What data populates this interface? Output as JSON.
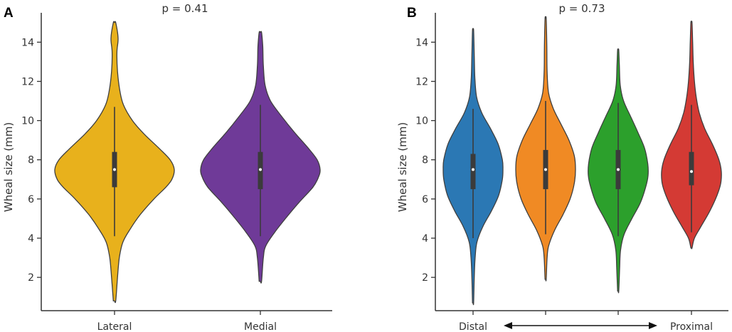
{
  "chart_data": [
    {
      "type": "violin",
      "panel": "A",
      "title": "p = 0.41",
      "xlabel": "",
      "ylabel": "Wheal size (mm)",
      "ylim": [
        0.3,
        15.5
      ],
      "yticks": [
        2,
        4,
        6,
        8,
        10,
        12,
        14
      ],
      "categories": [
        "Lateral",
        "Medial"
      ],
      "series": [
        {
          "name": "Lateral",
          "color": "#e8b11c",
          "min": 0.8,
          "max": 15.0,
          "q1": 6.6,
          "median": 7.5,
          "q3": 8.4,
          "whisker_low": 4.1,
          "whisker_high": 10.7,
          "density": [
            [
              0.8,
              0.02
            ],
            [
              2,
              0.05
            ],
            [
              3,
              0.08
            ],
            [
              3.8,
              0.14
            ],
            [
              4.5,
              0.27
            ],
            [
              5.2,
              0.43
            ],
            [
              6,
              0.66
            ],
            [
              6.6,
              0.86
            ],
            [
              7,
              0.96
            ],
            [
              7.5,
              1.0
            ],
            [
              8,
              0.93
            ],
            [
              8.6,
              0.74
            ],
            [
              9.3,
              0.5
            ],
            [
              10,
              0.3
            ],
            [
              10.8,
              0.15
            ],
            [
              11.5,
              0.09
            ],
            [
              12.5,
              0.05
            ],
            [
              13.5,
              0.04
            ],
            [
              14.2,
              0.06
            ],
            [
              15.0,
              0.02
            ]
          ]
        },
        {
          "name": "Medial",
          "color": "#6f3a98",
          "min": 1.8,
          "max": 14.5,
          "q1": 6.5,
          "median": 7.5,
          "q3": 8.4,
          "whisker_low": 4.1,
          "whisker_high": 10.8,
          "density": [
            [
              1.8,
              0.02
            ],
            [
              3,
              0.05
            ],
            [
              3.6,
              0.09
            ],
            [
              4.3,
              0.24
            ],
            [
              5,
              0.42
            ],
            [
              5.8,
              0.64
            ],
            [
              6.6,
              0.88
            ],
            [
              7.1,
              0.97
            ],
            [
              7.5,
              1.0
            ],
            [
              8,
              0.95
            ],
            [
              8.6,
              0.8
            ],
            [
              9.4,
              0.57
            ],
            [
              10.2,
              0.36
            ],
            [
              11,
              0.17
            ],
            [
              11.8,
              0.08
            ],
            [
              12.8,
              0.05
            ],
            [
              13.8,
              0.04
            ],
            [
              14.5,
              0.02
            ]
          ]
        }
      ]
    },
    {
      "type": "violin",
      "panel": "B",
      "title": "p = 0.73",
      "xlabel": "",
      "ylabel": "Wheal size (mm)",
      "ylim": [
        0.3,
        15.5
      ],
      "yticks": [
        2,
        4,
        6,
        8,
        10,
        12,
        14
      ],
      "categories": [
        "Distal",
        "",
        "",
        "Proximal"
      ],
      "arrow": "bidirectional",
      "series": [
        {
          "name": "Distal",
          "color": "#2b78b4",
          "min": 0.7,
          "max": 14.6,
          "q1": 6.5,
          "median": 7.5,
          "q3": 8.3,
          "whisker_low": 4.0,
          "whisker_high": 10.6,
          "density": [
            [
              0.7,
              0.02
            ],
            [
              2,
              0.04
            ],
            [
              3,
              0.07
            ],
            [
              3.8,
              0.13
            ],
            [
              4.6,
              0.33
            ],
            [
              5.4,
              0.62
            ],
            [
              6.2,
              0.86
            ],
            [
              7,
              0.98
            ],
            [
              7.5,
              1.0
            ],
            [
              8,
              0.98
            ],
            [
              8.8,
              0.84
            ],
            [
              9.6,
              0.58
            ],
            [
              10.4,
              0.29
            ],
            [
              11.2,
              0.12
            ],
            [
              12.2,
              0.06
            ],
            [
              13.3,
              0.04
            ],
            [
              14.6,
              0.02
            ]
          ]
        },
        {
          "name": "",
          "color": "#f08a24",
          "min": 1.9,
          "max": 15.2,
          "q1": 6.5,
          "median": 7.5,
          "q3": 8.5,
          "whisker_low": 4.2,
          "whisker_high": 11.0,
          "density": [
            [
              1.9,
              0.02
            ],
            [
              3,
              0.05
            ],
            [
              3.6,
              0.1
            ],
            [
              4.4,
              0.3
            ],
            [
              5.2,
              0.58
            ],
            [
              6,
              0.82
            ],
            [
              6.8,
              0.96
            ],
            [
              7.5,
              1.0
            ],
            [
              8.2,
              0.96
            ],
            [
              9,
              0.78
            ],
            [
              9.8,
              0.52
            ],
            [
              10.6,
              0.26
            ],
            [
              11.4,
              0.1
            ],
            [
              12.5,
              0.05
            ],
            [
              13.8,
              0.04
            ],
            [
              15.2,
              0.02
            ]
          ]
        },
        {
          "name": "",
          "color": "#2ca02c",
          "min": 1.3,
          "max": 13.6,
          "q1": 6.5,
          "median": 7.5,
          "q3": 8.5,
          "whisker_low": 4.1,
          "whisker_high": 10.9,
          "density": [
            [
              1.3,
              0.02
            ],
            [
              2.5,
              0.05
            ],
            [
              3.4,
              0.08
            ],
            [
              4.2,
              0.2
            ],
            [
              5,
              0.46
            ],
            [
              5.8,
              0.74
            ],
            [
              6.6,
              0.92
            ],
            [
              7.2,
              1.0
            ],
            [
              7.8,
              0.99
            ],
            [
              8.6,
              0.88
            ],
            [
              9.4,
              0.66
            ],
            [
              10.2,
              0.42
            ],
            [
              11,
              0.18
            ],
            [
              11.8,
              0.07
            ],
            [
              12.8,
              0.04
            ],
            [
              13.6,
              0.02
            ]
          ]
        },
        {
          "name": "Proximal",
          "color": "#d43a34",
          "min": 3.5,
          "max": 15.0,
          "q1": 6.7,
          "median": 7.4,
          "q3": 8.4,
          "whisker_low": 4.3,
          "whisker_high": 10.8,
          "density": [
            [
              3.5,
              0.02
            ],
            [
              4,
              0.1
            ],
            [
              4.6,
              0.32
            ],
            [
              5.4,
              0.62
            ],
            [
              6.2,
              0.86
            ],
            [
              6.8,
              0.98
            ],
            [
              7.4,
              1.0
            ],
            [
              8,
              0.92
            ],
            [
              8.8,
              0.7
            ],
            [
              9.6,
              0.44
            ],
            [
              10.4,
              0.26
            ],
            [
              11.2,
              0.16
            ],
            [
              12,
              0.1
            ],
            [
              13,
              0.06
            ],
            [
              14,
              0.04
            ],
            [
              15.0,
              0.02
            ]
          ]
        }
      ]
    }
  ]
}
